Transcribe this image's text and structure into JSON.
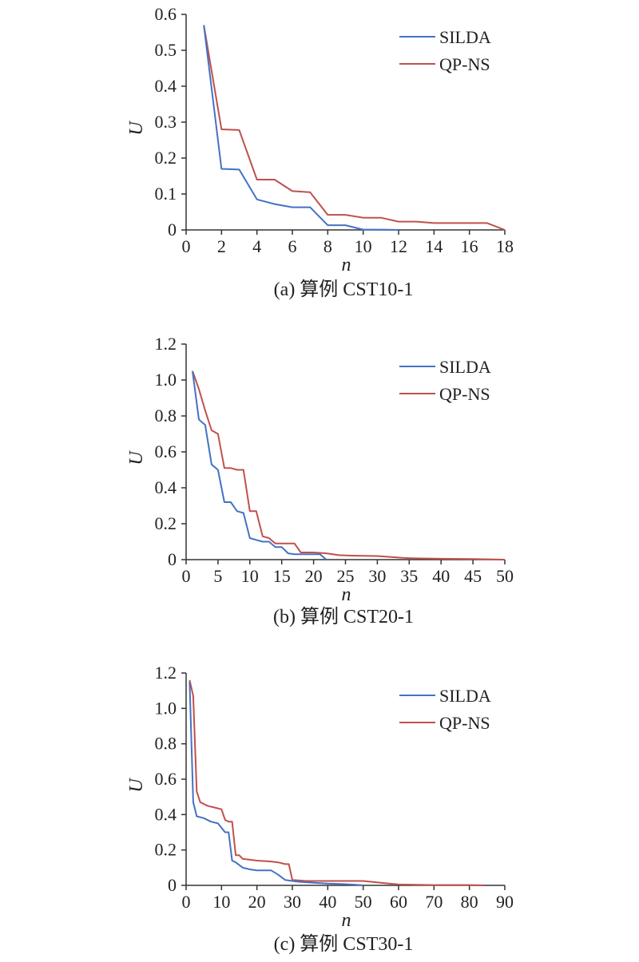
{
  "colors": {
    "SILDA": "#4472c4",
    "QP-NS": "#c0504d",
    "axis": "#333333"
  },
  "chart_data": [
    {
      "type": "line",
      "caption": "(a) 算例 CST10-1",
      "xlabel": "n",
      "ylabel": "U",
      "xlim": [
        0,
        18
      ],
      "ylim": [
        0,
        0.6
      ],
      "xticks": [
        0,
        2,
        4,
        6,
        8,
        10,
        12,
        14,
        16,
        18
      ],
      "xtick_labels": [
        "0",
        "2",
        "4",
        "6",
        "8",
        "10",
        "12",
        "14",
        "16",
        "18"
      ],
      "yticks": [
        0,
        0.1,
        0.2,
        0.3,
        0.4,
        0.5,
        0.6
      ],
      "ytick_labels": [
        "0",
        "0.1",
        "0.2",
        "0.3",
        "0.4",
        "0.5",
        "0.6"
      ],
      "grid": false,
      "legend": "top-right",
      "series": [
        {
          "name": "SILDA",
          "color": "#4472c4",
          "x": [
            1,
            2,
            3,
            4,
            5,
            6,
            7,
            8,
            9,
            10,
            11,
            12
          ],
          "y": [
            0.57,
            0.17,
            0.168,
            0.085,
            0.072,
            0.063,
            0.063,
            0.013,
            0.013,
            0.001,
            0.001,
            0
          ]
        },
        {
          "name": "QP-NS",
          "color": "#c0504d",
          "x": [
            1,
            2,
            3,
            4,
            5,
            6,
            7,
            8,
            9,
            10,
            11,
            12,
            13,
            14,
            15,
            16,
            17,
            18
          ],
          "y": [
            0.57,
            0.28,
            0.278,
            0.14,
            0.14,
            0.108,
            0.105,
            0.042,
            0.042,
            0.034,
            0.034,
            0.023,
            0.023,
            0.019,
            0.019,
            0.019,
            0.019,
            0
          ]
        }
      ]
    },
    {
      "type": "line",
      "caption": "(b) 算例 CST20-1",
      "xlabel": "n",
      "ylabel": "U",
      "xlim": [
        0,
        50
      ],
      "ylim": [
        0,
        1.2
      ],
      "xticks": [
        0,
        5,
        10,
        15,
        20,
        25,
        30,
        35,
        40,
        45,
        50
      ],
      "xtick_labels": [
        "0",
        "5",
        "10",
        "15",
        "20",
        "25",
        "30",
        "35",
        "40",
        "45",
        "50"
      ],
      "yticks": [
        0,
        0.2,
        0.4,
        0.6,
        0.8,
        1.0,
        1.2
      ],
      "ytick_labels": [
        "0",
        "0.2",
        "0.4",
        "0.6",
        "0.8",
        "1.0",
        "1.2"
      ],
      "grid": false,
      "legend": "top-right",
      "series": [
        {
          "name": "SILDA",
          "color": "#4472c4",
          "x": [
            1,
            2,
            3,
            4,
            5,
            6,
            7,
            8,
            9,
            10,
            11,
            12,
            13,
            14,
            15,
            16,
            17,
            18,
            19,
            20,
            21,
            22
          ],
          "y": [
            1.05,
            0.78,
            0.75,
            0.53,
            0.5,
            0.32,
            0.32,
            0.27,
            0.26,
            0.12,
            0.11,
            0.1,
            0.1,
            0.07,
            0.07,
            0.035,
            0.03,
            0.03,
            0.03,
            0.03,
            0.03,
            0
          ]
        },
        {
          "name": "QP-NS",
          "color": "#c0504d",
          "x": [
            1,
            2,
            3,
            4,
            5,
            6,
            7,
            8,
            9,
            10,
            11,
            12,
            13,
            14,
            15,
            16,
            17,
            18,
            20,
            22,
            24,
            26,
            30,
            32,
            34,
            36,
            40,
            45,
            50
          ],
          "y": [
            1.05,
            0.95,
            0.83,
            0.72,
            0.7,
            0.51,
            0.51,
            0.5,
            0.5,
            0.27,
            0.27,
            0.13,
            0.12,
            0.09,
            0.09,
            0.09,
            0.09,
            0.04,
            0.04,
            0.035,
            0.025,
            0.022,
            0.02,
            0.015,
            0.01,
            0.007,
            0.005,
            0.003,
            0
          ]
        }
      ]
    },
    {
      "type": "line",
      "caption": "(c) 算例 CST30-1",
      "xlabel": "n",
      "ylabel": "U",
      "xlim": [
        0,
        90
      ],
      "ylim": [
        0,
        1.2
      ],
      "xticks": [
        0,
        10,
        20,
        30,
        40,
        50,
        60,
        70,
        80,
        90
      ],
      "xtick_labels": [
        "0",
        "10",
        "20",
        "30",
        "40",
        "50",
        "60",
        "70",
        "80",
        "90"
      ],
      "yticks": [
        0,
        0.2,
        0.4,
        0.6,
        0.8,
        1.0,
        1.2
      ],
      "ytick_labels": [
        "0",
        "0.2",
        "0.4",
        "0.6",
        "0.8",
        "1.0",
        "1.2"
      ],
      "grid": false,
      "legend": "top-right",
      "series": [
        {
          "name": "SILDA",
          "color": "#4472c4",
          "x": [
            1,
            2,
            3,
            5,
            7,
            9,
            11,
            12,
            13,
            14,
            16,
            18,
            20,
            24,
            26,
            28,
            30,
            32,
            36,
            40,
            44,
            48,
            50
          ],
          "y": [
            1.15,
            0.47,
            0.39,
            0.38,
            0.36,
            0.35,
            0.3,
            0.3,
            0.14,
            0.13,
            0.1,
            0.09,
            0.085,
            0.085,
            0.06,
            0.03,
            0.025,
            0.02,
            0.015,
            0.01,
            0.007,
            0.003,
            0
          ]
        },
        {
          "name": "QP-NS",
          "color": "#c0504d",
          "x": [
            1,
            2,
            3,
            4,
            6,
            8,
            10,
            11,
            12,
            13,
            14,
            15,
            16,
            18,
            20,
            24,
            26,
            28,
            29,
            30,
            34,
            40,
            50,
            55,
            60,
            65,
            70,
            80,
            84
          ],
          "y": [
            1.16,
            1.07,
            0.53,
            0.47,
            0.45,
            0.44,
            0.43,
            0.37,
            0.36,
            0.36,
            0.17,
            0.17,
            0.15,
            0.145,
            0.14,
            0.135,
            0.13,
            0.12,
            0.12,
            0.03,
            0.025,
            0.025,
            0.025,
            0.015,
            0.005,
            0.003,
            0.002,
            0.002,
            0
          ]
        }
      ]
    }
  ]
}
